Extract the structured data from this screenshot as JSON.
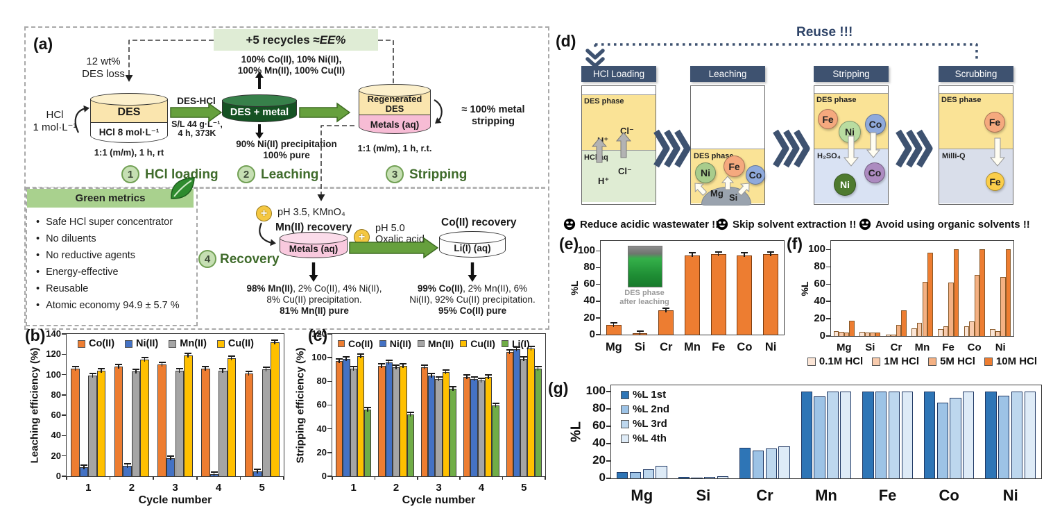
{
  "panel_a": {
    "label": "(a)",
    "recycle_prefix": "+5 recycles ≈ ",
    "recycle_em": "EE%",
    "des_loss_line1": "12 wt%",
    "des_loss_line2": "DES loss",
    "hcl_feed_line1": "HCl",
    "hcl_feed_line2": "1 mol·L⁻¹",
    "cyl1_top": "DES",
    "cyl1_bottom": "HCl 8 mol·L⁻¹",
    "cyl1_caption": "1:1 (m/m),  1 h, rt",
    "arrow1_label": "DES-HCl",
    "arrow1_sub1": "S/L 44 g·L⁻¹,",
    "arrow1_sub2": "4 h, 373K",
    "leach_gas_line1": "100% Co(II), 10% Ni(II),",
    "leach_gas_line2": "100% Mn(II), 100% Cu(II)",
    "cyl2_label": "DES + metal",
    "leach_precip_line1": "90% Ni(II) precipitation",
    "leach_precip_line2": "100% pure",
    "cyl3_top_line1": "Regenerated",
    "cyl3_top_line2": "DES",
    "cyl3_bottom": "Metals (aq)",
    "cyl3_caption": "1:1 (m/m),  1 h, r.t.",
    "stripping_note_line1": "≈ 100% metal",
    "stripping_note_line2": "stripping",
    "steps": [
      {
        "num": "1",
        "label": "HCl loading"
      },
      {
        "num": "2",
        "label": "Leaching"
      },
      {
        "num": "3",
        "label": "Stripping"
      },
      {
        "num": "4",
        "label": "Recovery"
      }
    ],
    "green_metrics": {
      "title": "Green metrics",
      "items": [
        "Safe HCl super concentrator",
        "No diluents",
        "No reductive agents",
        "Energy-effective",
        "Reusable",
        "Atomic economy 94.9 ± 5.7 %"
      ]
    },
    "recovery": {
      "mn_condition": "pH 3.5, KMnO₄",
      "mn_title": "Mn(II) recovery",
      "mn_cyl": "Metals (aq)",
      "co_condition_line1": "pH 5.0",
      "co_condition_line2": "Oxalic acid",
      "co_title": "Co(II) recovery",
      "co_cyl": "Li(I) (aq)",
      "mn_result_bold1": "98% Mn(II)",
      "mn_result_rest1": ", 2% Co(II), 4% Ni(II),",
      "mn_result_line2": "8% Cu(II) precipitation.",
      "mn_result_line3": "81% Mn(II) pure",
      "co_result_bold1": "99% Co(II)",
      "co_result_rest1": ", 2% Mn(II), 6%",
      "co_result_line2": "Ni(II), 92% Cu(II) precipitation.",
      "co_result_line3": "95% Co(II) pure"
    }
  },
  "panel_d": {
    "label": "(d)",
    "title": "Reuse !!!",
    "stages": [
      {
        "title": "HCl Loading",
        "top_label": "DES phase",
        "ion_a": "H⁺",
        "ion_b": "Cl⁻",
        "bottom_label": "HCl aq",
        "ion_c": "H⁺",
        "ion_d": "Cl⁻"
      },
      {
        "title": "Leaching",
        "phase_label": "DES phase",
        "ions": [
          "Ni",
          "Fe",
          "Co"
        ],
        "mound_ions": [
          "Mg",
          "Si"
        ]
      },
      {
        "title": "Stripping",
        "top_label": "DES phase",
        "top_ions": [
          "Fe",
          "Ni",
          "Co"
        ],
        "bottom_label": "H₂SO₄",
        "bottom_ions": [
          "Ni",
          "Co"
        ]
      },
      {
        "title": "Scrubbing",
        "top_label": "DES phase",
        "top_ions": [
          "Fe"
        ],
        "bottom_label": "Milli-Q",
        "bottom_ions": [
          "Fe"
        ]
      }
    ],
    "benefits": [
      {
        "text": "Reduce acidic wastewater !!"
      },
      {
        "text": "Skip solvent extraction !!"
      },
      {
        "text": "Avoid using organic solvents !!"
      }
    ]
  },
  "panel_letters": {
    "b": "(b)",
    "c": "(c)",
    "e": "(e)",
    "f": "(f)",
    "g": "(g)"
  },
  "colors": {
    "navy": "#3E5270",
    "green_arrow": "#66A03D",
    "step_green": "#3F6B2B",
    "des_yellow": "#FAE5AE",
    "hcl_aq_green": "#DFECD3",
    "h2so4_blue": "#D9E2F3",
    "milliq_lavender": "#D9DEEA"
  },
  "chart_data": [
    {
      "id": "b",
      "type": "bar",
      "panel_label": "(b)",
      "ylabel": "Leaching efficiency (%)",
      "xlabel": "Cycle number",
      "ylim": [
        0,
        140
      ],
      "ytick_step": 20,
      "grid": false,
      "legend_position": "top-inside",
      "categories": [
        "1",
        "2",
        "3",
        "4",
        "5"
      ],
      "series": [
        {
          "name": "Co(II)",
          "color": "#ED7D31",
          "values": [
            106,
            108,
            110,
            106,
            101
          ]
        },
        {
          "name": "Ni(II)",
          "color": "#4472C4",
          "values": [
            9,
            10,
            18,
            2,
            5
          ]
        },
        {
          "name": "Mn(II)",
          "color": "#A5A5A5",
          "values": [
            99,
            103,
            104,
            104,
            105
          ]
        },
        {
          "name": "Cu(II)",
          "color": "#FFC000",
          "values": [
            104,
            115,
            119,
            116,
            132
          ]
        }
      ],
      "error_bar": 2
    },
    {
      "id": "c",
      "type": "bar",
      "panel_label": "(c)",
      "ylabel": "Stripping efficiency (%)",
      "xlabel": "Cycle number",
      "ylim": [
        0,
        120
      ],
      "ytick_step": 20,
      "grid": false,
      "legend_position": "top-inside",
      "categories": [
        "1",
        "2",
        "3",
        "4",
        "5"
      ],
      "series": [
        {
          "name": "Co(II)",
          "color": "#ED7D31",
          "values": [
            97,
            93,
            92,
            84,
            105
          ]
        },
        {
          "name": "Ni(II)",
          "color": "#4472C4",
          "values": [
            99,
            96,
            85,
            82,
            107
          ]
        },
        {
          "name": "Mn(II)",
          "color": "#A5A5A5",
          "values": [
            91,
            92,
            82,
            81,
            99
          ]
        },
        {
          "name": "Cu(II)",
          "color": "#FFC000",
          "values": [
            101,
            93,
            88,
            84,
            108
          ]
        },
        {
          "name": "Li(I)",
          "color": "#70AD47",
          "values": [
            56,
            52,
            74,
            60,
            91
          ]
        }
      ],
      "error_bar": 2
    },
    {
      "id": "e",
      "type": "bar",
      "panel_label": "(e)",
      "ylabel": "%L",
      "xlabel": "",
      "ylim": [
        0,
        100
      ],
      "ytick_step": 20,
      "grid": false,
      "categories": [
        "Mg",
        "Si",
        "Cr",
        "Mn",
        "Fe",
        "Co",
        "Ni"
      ],
      "series": [
        {
          "name": "DES leaching",
          "color": "#ED7D31",
          "values": [
            12,
            2,
            29,
            95,
            96,
            95,
            96
          ]
        }
      ],
      "error_bar": 2,
      "inset_caption_line1": "DES phase",
      "inset_caption_line2": "after leaching"
    },
    {
      "id": "f",
      "type": "bar",
      "panel_label": "(f)",
      "ylabel": "%L",
      "xlabel": "",
      "ylim": [
        0,
        100
      ],
      "ytick_step": 20,
      "grid": false,
      "legend_position": "bottom",
      "categories": [
        "Mg",
        "Si",
        "Cr",
        "Mn",
        "Fe",
        "Co",
        "Ni"
      ],
      "series": [
        {
          "name": "0.1M HCl",
          "color": "#FBE5D6",
          "values": [
            6,
            5,
            2,
            9,
            8,
            11,
            8
          ]
        },
        {
          "name": "1M HCl",
          "color": "#F8CBAD",
          "values": [
            5,
            4,
            2,
            15,
            11,
            17,
            6
          ]
        },
        {
          "name": "5M HCl",
          "color": "#F4B183",
          "values": [
            4,
            4,
            13,
            63,
            62,
            71,
            68
          ]
        },
        {
          "name": "10M HCl",
          "color": "#ED7D31",
          "values": [
            18,
            4,
            30,
            96,
            100,
            100,
            100
          ]
        }
      ]
    },
    {
      "id": "g",
      "type": "bar",
      "panel_label": "(g)",
      "ylabel": "%L",
      "xlabel": "",
      "ylim": [
        0,
        100
      ],
      "ytick_step": 20,
      "grid": false,
      "legend_position": "top-left-inside",
      "categories": [
        "Mg",
        "Si",
        "Cr",
        "Mn",
        "Fe",
        "Co",
        "Ni"
      ],
      "series": [
        {
          "name": "%L 1st",
          "color": "#2E75B6",
          "values": [
            7,
            2,
            35,
            100,
            100,
            100,
            100
          ]
        },
        {
          "name": "%L 2nd",
          "color": "#9DC3E6",
          "values": [
            7,
            1,
            32,
            94,
            100,
            87,
            95
          ]
        },
        {
          "name": "%L 3rd",
          "color": "#BDD7EE",
          "values": [
            10,
            1.5,
            34,
            100,
            100,
            93,
            100
          ]
        },
        {
          "name": "%L 4th",
          "color": "#DEEBF7",
          "values": [
            14,
            2.5,
            37,
            100,
            100,
            100,
            100
          ]
        }
      ]
    }
  ]
}
